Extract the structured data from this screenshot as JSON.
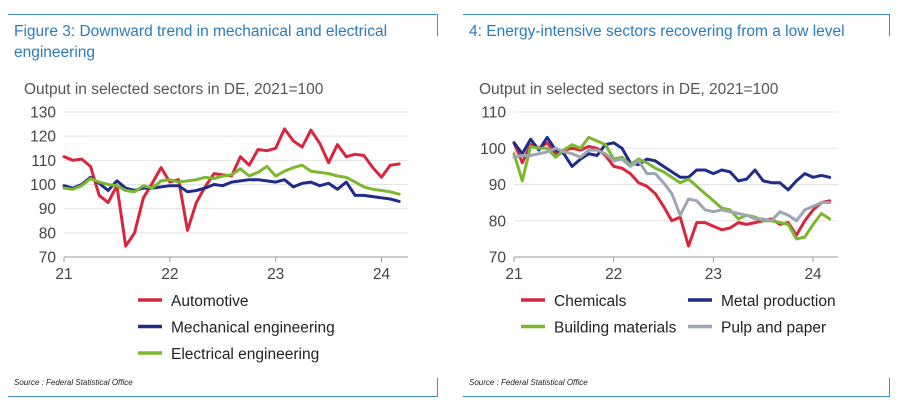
{
  "panels": [
    {
      "title": "Figure 3: Downward trend in mechanical and electrical engineering",
      "subtitle": "Output in selected sectors in DE, 2021=100",
      "source": "Source : Federal Statistical Office"
    },
    {
      "title": "4: Energy-intensive sectors recovering from a low level",
      "subtitle": "Output in selected sectors in DE, 2021=100",
      "source": "Source : Federal Statistical Office"
    }
  ],
  "chart_data": [
    {
      "type": "line",
      "title": "Figure 3: Downward trend in mechanical and electrical engineering",
      "subtitle": "Output in selected sectors in DE, 2021=100",
      "xlim": [
        2021,
        2024.25
      ],
      "xticks": [
        {
          "value": 2021,
          "label": "21"
        },
        {
          "value": 2022,
          "label": "22"
        },
        {
          "value": 2023,
          "label": "23"
        },
        {
          "value": 2024,
          "label": "24"
        }
      ],
      "ylim": [
        70,
        130
      ],
      "yticks": [
        70,
        80,
        90,
        100,
        110,
        120,
        130
      ],
      "grid": "horizontal",
      "legend_position": "bottom",
      "series": [
        {
          "name": "Automotive",
          "color": "#d7263d",
          "x": [
            2021.0,
            2021.083,
            2021.167,
            2021.25,
            2021.333,
            2021.417,
            2021.5,
            2021.583,
            2021.667,
            2021.75,
            2021.833,
            2021.917,
            2022.0,
            2022.083,
            2022.167,
            2022.25,
            2022.333,
            2022.417,
            2022.5,
            2022.583,
            2022.667,
            2022.75,
            2022.833,
            2022.917,
            2023.0,
            2023.083,
            2023.167,
            2023.25,
            2023.333,
            2023.417,
            2023.5,
            2023.583,
            2023.667,
            2023.75,
            2023.833,
            2023.917,
            2024.0,
            2024.083,
            2024.167
          ],
          "values": [
            111.5,
            110.0,
            110.5,
            107.5,
            95.5,
            92.5,
            99.5,
            74.5,
            80.0,
            94.5,
            100.5,
            107.0,
            101.0,
            102.0,
            81.0,
            92.5,
            99.0,
            104.5,
            104.0,
            103.5,
            111.5,
            108.0,
            114.5,
            114.0,
            115.0,
            123.0,
            118.0,
            115.5,
            122.5,
            117.0,
            109.0,
            116.5,
            111.5,
            112.5,
            112.0,
            107.0,
            103.0,
            108.0,
            108.5
          ]
        },
        {
          "name": "Mechanical engineering",
          "color": "#1f2c8a",
          "x": [
            2021.0,
            2021.083,
            2021.167,
            2021.25,
            2021.333,
            2021.417,
            2021.5,
            2021.583,
            2021.667,
            2021.75,
            2021.833,
            2021.917,
            2022.0,
            2022.083,
            2022.167,
            2022.25,
            2022.333,
            2022.417,
            2022.5,
            2022.583,
            2022.667,
            2022.75,
            2022.833,
            2022.917,
            2023.0,
            2023.083,
            2023.167,
            2023.25,
            2023.333,
            2023.417,
            2023.5,
            2023.583,
            2023.667,
            2023.75,
            2023.833,
            2023.917,
            2024.0,
            2024.083,
            2024.167
          ],
          "values": [
            99.5,
            98.5,
            100.0,
            103.0,
            100.5,
            97.5,
            101.5,
            98.5,
            97.5,
            98.5,
            98.5,
            99.0,
            99.5,
            99.5,
            97.0,
            97.5,
            98.5,
            100.0,
            99.5,
            101.0,
            101.5,
            102.0,
            102.0,
            101.5,
            101.0,
            102.0,
            99.0,
            100.5,
            101.0,
            99.5,
            100.5,
            98.0,
            101.0,
            95.5,
            95.5,
            95.0,
            94.5,
            94.0,
            93.0
          ]
        },
        {
          "name": "Electrical engineering",
          "color": "#7cb82f",
          "x": [
            2021.0,
            2021.083,
            2021.167,
            2021.25,
            2021.333,
            2021.417,
            2021.5,
            2021.583,
            2021.667,
            2021.75,
            2021.833,
            2021.917,
            2022.0,
            2022.083,
            2022.167,
            2022.25,
            2022.333,
            2022.417,
            2022.5,
            2022.583,
            2022.667,
            2022.75,
            2022.833,
            2022.917,
            2023.0,
            2023.083,
            2023.167,
            2023.25,
            2023.333,
            2023.417,
            2023.5,
            2023.583,
            2023.667,
            2023.75,
            2023.833,
            2023.917,
            2024.0,
            2024.083,
            2024.167
          ],
          "values": [
            98.5,
            98.0,
            99.5,
            102.5,
            101.0,
            100.0,
            99.5,
            97.5,
            97.0,
            99.5,
            98.5,
            101.5,
            102.0,
            101.0,
            101.5,
            102.0,
            103.0,
            102.5,
            103.5,
            104.0,
            106.5,
            103.5,
            105.0,
            107.5,
            103.5,
            105.5,
            107.0,
            108.0,
            105.5,
            105.0,
            104.5,
            103.5,
            103.0,
            101.0,
            99.0,
            98.0,
            97.5,
            97.0,
            96.0
          ]
        }
      ]
    },
    {
      "type": "line",
      "title": "4: Energy-intensive sectors recovering from a low level",
      "subtitle": "Output in selected sectors in DE, 2021=100",
      "xlim": [
        2021,
        2024.25
      ],
      "xticks": [
        {
          "value": 2021,
          "label": "21"
        },
        {
          "value": 2022,
          "label": "22"
        },
        {
          "value": 2023,
          "label": "23"
        },
        {
          "value": 2024,
          "label": "24"
        }
      ],
      "ylim": [
        70,
        110
      ],
      "yticks": [
        70,
        80,
        90,
        100,
        110
      ],
      "grid": "horizontal",
      "legend_position": "bottom",
      "series": [
        {
          "name": "Chemicals",
          "color": "#d7263d",
          "x": [
            2021.0,
            2021.083,
            2021.167,
            2021.25,
            2021.333,
            2021.417,
            2021.5,
            2021.583,
            2021.667,
            2021.75,
            2021.833,
            2021.917,
            2022.0,
            2022.083,
            2022.167,
            2022.25,
            2022.333,
            2022.417,
            2022.5,
            2022.583,
            2022.667,
            2022.75,
            2022.833,
            2022.917,
            2023.0,
            2023.083,
            2023.167,
            2023.25,
            2023.333,
            2023.417,
            2023.5,
            2023.583,
            2023.667,
            2023.75,
            2023.833,
            2023.917,
            2024.0,
            2024.083,
            2024.167
          ],
          "values": [
            101.5,
            96.0,
            101.0,
            100.0,
            101.5,
            98.5,
            99.5,
            100.0,
            99.5,
            100.5,
            100.0,
            98.0,
            95.0,
            94.5,
            93.0,
            90.5,
            89.5,
            87.5,
            84.0,
            80.0,
            81.0,
            73.0,
            79.5,
            79.5,
            78.5,
            77.5,
            78.0,
            79.5,
            79.0,
            79.5,
            80.0,
            80.5,
            79.0,
            79.5,
            76.0,
            80.0,
            83.0,
            85.0,
            85.5
          ]
        },
        {
          "name": "Metal production",
          "color": "#1f2c8a",
          "x": [
            2021.0,
            2021.083,
            2021.167,
            2021.25,
            2021.333,
            2021.417,
            2021.5,
            2021.583,
            2021.667,
            2021.75,
            2021.833,
            2021.917,
            2022.0,
            2022.083,
            2022.167,
            2022.25,
            2022.333,
            2022.417,
            2022.5,
            2022.583,
            2022.667,
            2022.75,
            2022.833,
            2022.917,
            2023.0,
            2023.083,
            2023.167,
            2023.25,
            2023.333,
            2023.417,
            2023.5,
            2023.583,
            2023.667,
            2023.75,
            2023.833,
            2023.917,
            2024.0,
            2024.083,
            2024.167
          ],
          "values": [
            101.5,
            98.5,
            102.5,
            99.5,
            103.0,
            99.5,
            98.5,
            95.0,
            97.0,
            98.5,
            98.0,
            101.0,
            101.5,
            100.0,
            96.0,
            95.5,
            97.0,
            96.5,
            95.0,
            93.5,
            92.0,
            92.0,
            94.0,
            94.0,
            93.0,
            94.0,
            93.5,
            91.0,
            91.5,
            94.0,
            91.0,
            90.5,
            90.5,
            88.5,
            91.0,
            93.0,
            92.0,
            92.5,
            92.0
          ]
        },
        {
          "name": "Building materials",
          "color": "#7cb82f",
          "x": [
            2021.0,
            2021.083,
            2021.167,
            2021.25,
            2021.333,
            2021.417,
            2021.5,
            2021.583,
            2021.667,
            2021.75,
            2021.833,
            2021.917,
            2022.0,
            2022.083,
            2022.167,
            2022.25,
            2022.333,
            2022.417,
            2022.5,
            2022.583,
            2022.667,
            2022.75,
            2022.833,
            2022.917,
            2023.0,
            2023.083,
            2023.167,
            2023.25,
            2023.333,
            2023.417,
            2023.5,
            2023.583,
            2023.667,
            2023.75,
            2023.833,
            2023.917,
            2024.0,
            2024.083,
            2024.167
          ],
          "values": [
            98.5,
            91.0,
            100.5,
            100.0,
            100.0,
            97.5,
            99.5,
            101.0,
            100.0,
            103.0,
            102.0,
            101.0,
            97.0,
            97.5,
            95.5,
            97.0,
            96.0,
            94.5,
            93.5,
            92.0,
            90.5,
            91.5,
            89.5,
            87.5,
            85.5,
            83.5,
            83.0,
            80.5,
            81.5,
            81.0,
            80.0,
            80.0,
            79.5,
            79.0,
            75.0,
            75.5,
            79.0,
            82.0,
            80.5
          ]
        },
        {
          "name": "Pulp and paper",
          "color": "#9ea6b4",
          "x": [
            2021.0,
            2021.083,
            2021.167,
            2021.25,
            2021.333,
            2021.417,
            2021.5,
            2021.583,
            2021.667,
            2021.75,
            2021.833,
            2021.917,
            2022.0,
            2022.083,
            2022.167,
            2022.25,
            2022.333,
            2022.417,
            2022.5,
            2022.583,
            2022.667,
            2022.75,
            2022.833,
            2022.917,
            2023.0,
            2023.083,
            2023.167,
            2023.25,
            2023.333,
            2023.417,
            2023.5,
            2023.583,
            2023.667,
            2023.75,
            2023.833,
            2023.917,
            2024.0,
            2024.083,
            2024.167
          ],
          "values": [
            97.5,
            98.0,
            98.0,
            98.5,
            99.0,
            100.0,
            99.0,
            98.5,
            97.5,
            99.5,
            99.5,
            98.5,
            96.5,
            97.0,
            95.0,
            96.5,
            93.0,
            93.0,
            90.5,
            87.5,
            81.5,
            86.0,
            85.5,
            83.0,
            82.5,
            83.0,
            82.5,
            82.0,
            81.5,
            80.5,
            80.5,
            80.0,
            82.5,
            81.5,
            80.0,
            83.0,
            84.0,
            85.0,
            85.0
          ]
        }
      ]
    }
  ]
}
